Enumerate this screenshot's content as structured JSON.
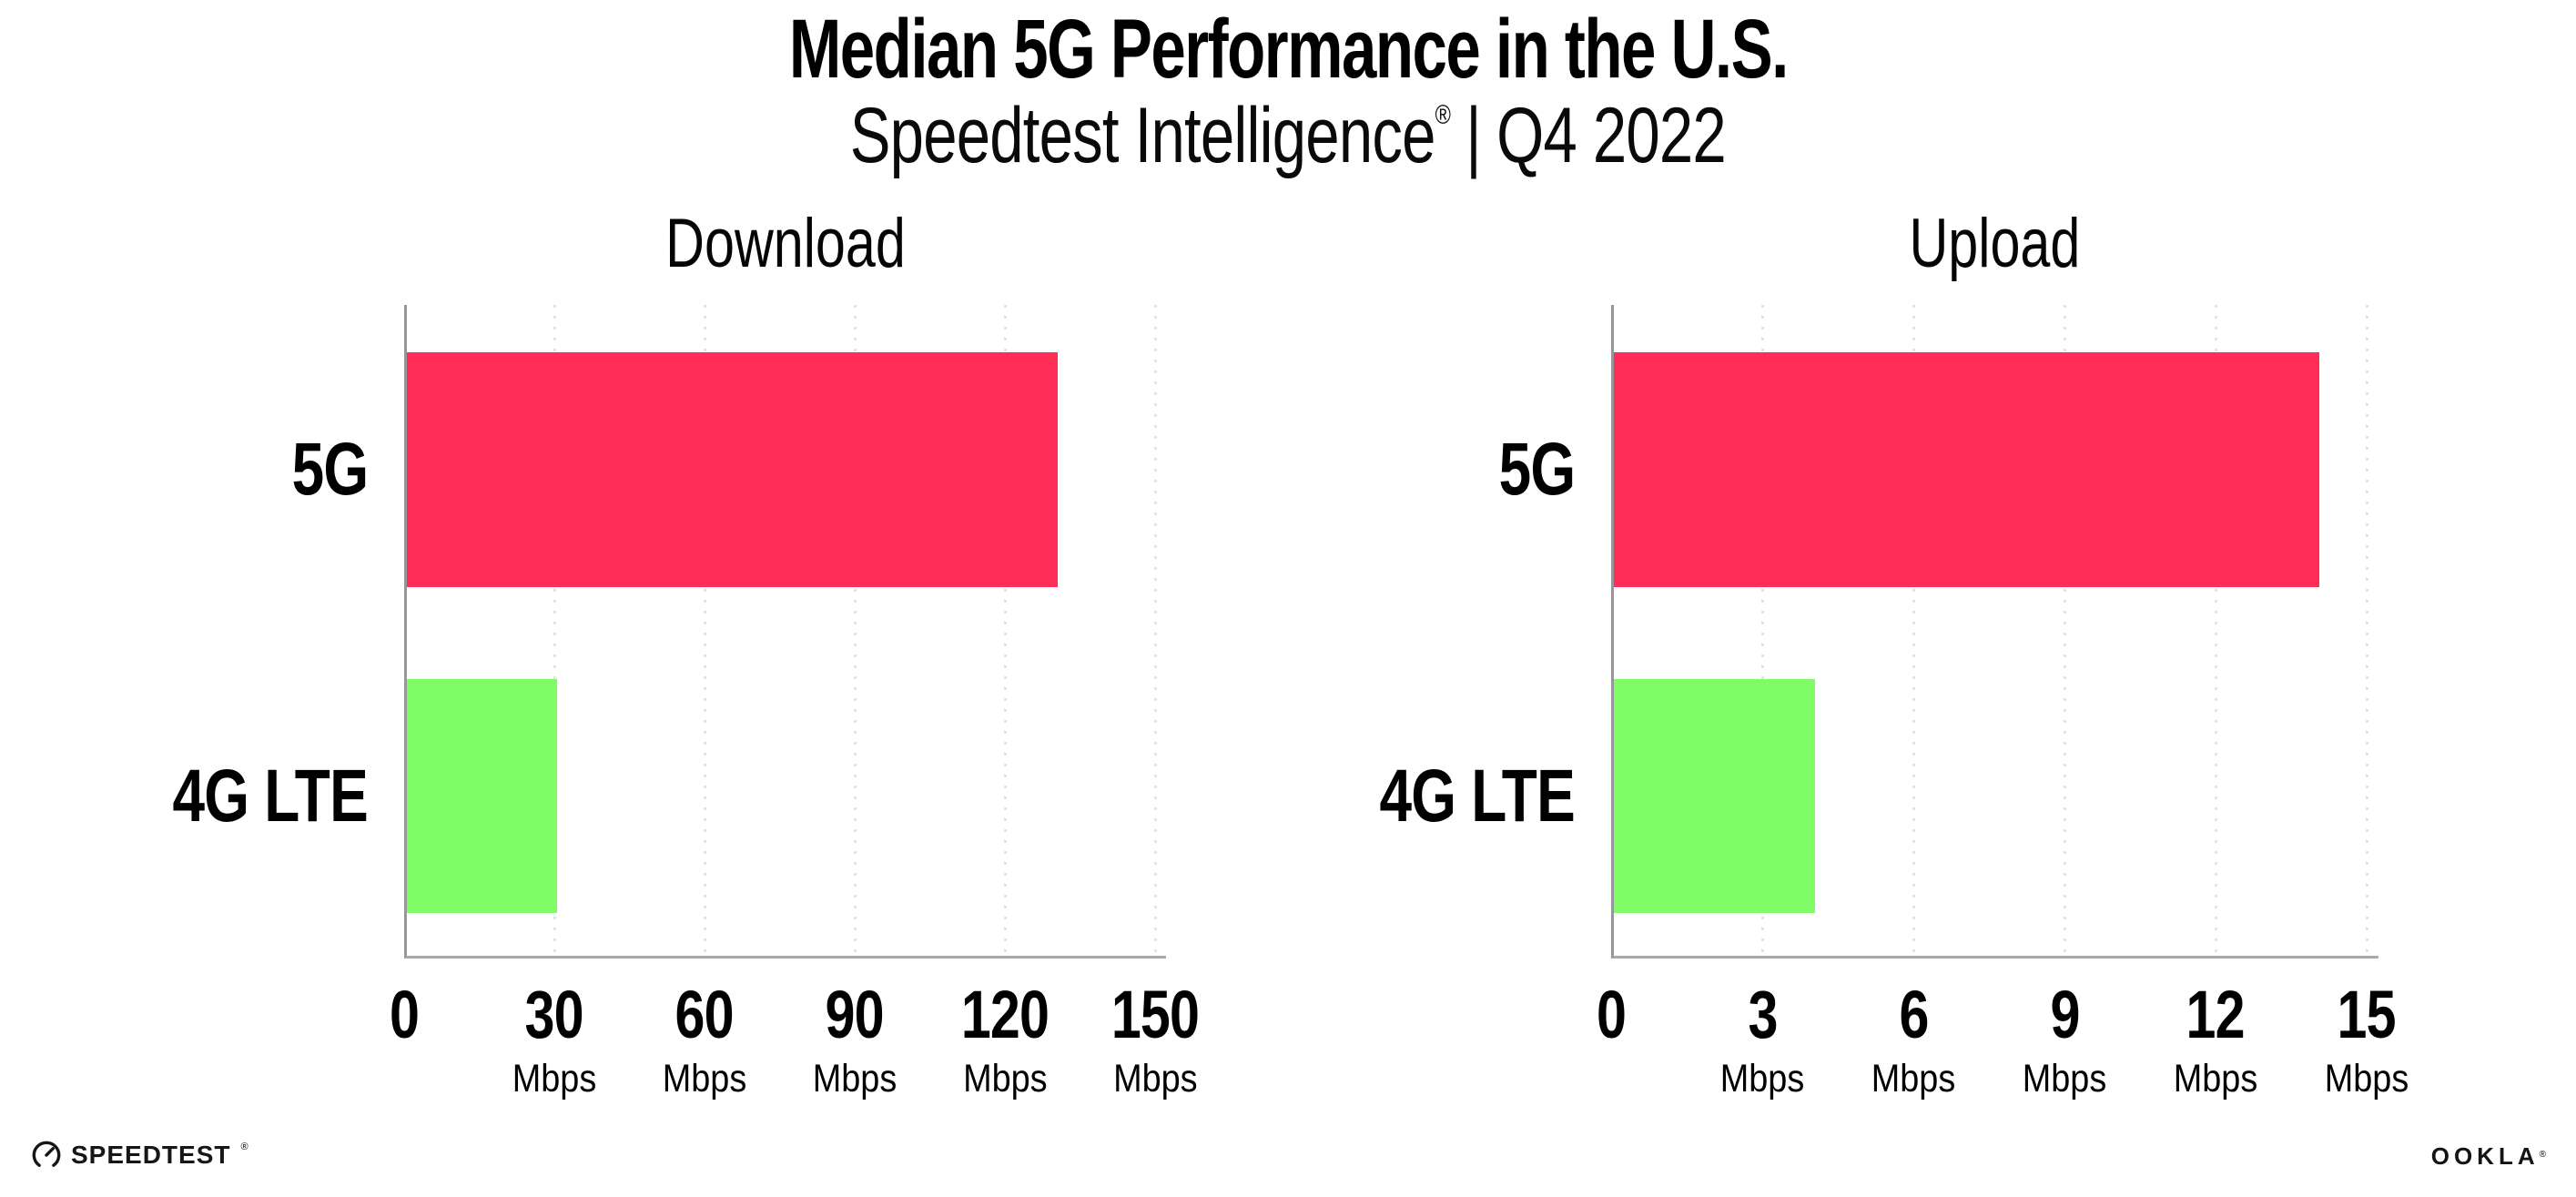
{
  "header": {
    "title": "Median 5G Performance in the U.S.",
    "subtitle_brand": "Speedtest Intelligence",
    "subtitle_reg": "®",
    "subtitle_sep": "|",
    "subtitle_period": "Q4 2022"
  },
  "chart_data": [
    {
      "type": "bar",
      "orientation": "horizontal",
      "title": "Download",
      "categories": [
        "5G",
        "4G LTE"
      ],
      "values": [
        130,
        30
      ],
      "unit": "Mbps",
      "xlim": [
        0,
        150
      ],
      "ticks": [
        0,
        30,
        60,
        90,
        120,
        150
      ],
      "bar_colors": [
        "#FF2D58",
        "#80FC66"
      ],
      "grid": "dotted-vertical",
      "legend": "none"
    },
    {
      "type": "bar",
      "orientation": "horizontal",
      "title": "Upload",
      "categories": [
        "5G",
        "4G LTE"
      ],
      "values": [
        14,
        4
      ],
      "unit": "Mbps",
      "xlim": [
        0,
        15
      ],
      "ticks": [
        0,
        3,
        6,
        9,
        12,
        15
      ],
      "bar_colors": [
        "#FF2D58",
        "#80FC66"
      ],
      "grid": "dotted-vertical",
      "legend": "none"
    }
  ],
  "footer": {
    "speedtest_label": "SPEEDTEST",
    "speedtest_reg": "®",
    "gauge_icon": "speedtest-gauge-icon",
    "ookla_label": "OOKLA",
    "ookla_reg": "®"
  },
  "colors": {
    "bar_5g": "#FF2D58",
    "bar_4g_lte": "#80FC66",
    "axis_line": "#a8a8ad",
    "gridline_dot": "#e1e2ec",
    "text": "#000000"
  }
}
